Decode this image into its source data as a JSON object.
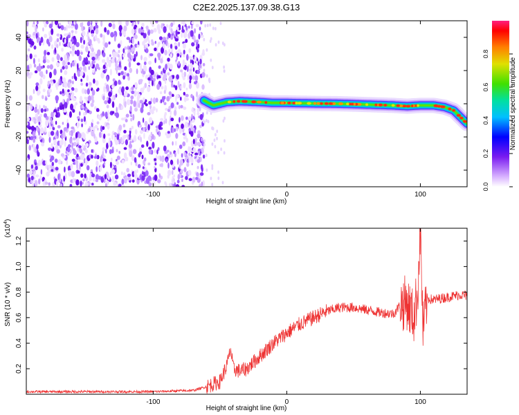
{
  "title": "C2E2.2025.137.09.38.G13",
  "chart_data": [
    {
      "type": "heatmap",
      "title": "C2E2.2025.137.09.38.G13",
      "xlabel": "Height of straight line (km)",
      "ylabel": "Frequency (Hz)",
      "xlim": [
        -195,
        135
      ],
      "ylim": [
        -50,
        50
      ],
      "xticks": [
        -100,
        0,
        100
      ],
      "yticks": [
        -40,
        -20,
        0,
        20,
        40
      ],
      "grid": false,
      "noise_region_x": [
        -195,
        -62
      ],
      "signal_trace": {
        "x": [
          -62,
          -55,
          -45,
          -35,
          -20,
          -10,
          0,
          20,
          40,
          60,
          80,
          90,
          100,
          110,
          118,
          125,
          130,
          135
        ],
        "y": [
          2,
          -1,
          1,
          1.5,
          1,
          0.5,
          0.5,
          0.2,
          0,
          -0.5,
          -1,
          -1.5,
          -1,
          -1,
          -2,
          -4,
          -8,
          -12
        ]
      },
      "colorbar": {
        "label": "Normalized spectral amplitude",
        "ticks": [
          "0.0",
          "0.2",
          "0.4",
          "0.6",
          "0.8"
        ],
        "range": [
          0,
          1
        ]
      }
    },
    {
      "type": "line",
      "xlabel": "Height of straight line (km)",
      "ylabel": "SNR (10 * v/v)",
      "y_multiplier": "(x10",
      "y_multiplier_exp": "4",
      "y_multiplier_close": ")",
      "xlim": [
        -195,
        135
      ],
      "ylim": [
        0,
        1.3
      ],
      "xticks": [
        -100,
        0,
        100
      ],
      "yticks": [
        "0.2",
        "0.4",
        "0.6",
        "0.8",
        "1.0",
        "1.2"
      ],
      "grid": false,
      "color": "#ee3333",
      "series": [
        {
          "x": [
            -195,
            -150,
            -100,
            -70,
            -60,
            -50,
            -45,
            -42,
            -40,
            -35,
            -30,
            -20,
            -10,
            0,
            10,
            20,
            30,
            40,
            50,
            60,
            70,
            80,
            85,
            90,
            95,
            98,
            100,
            102,
            105,
            110,
            120,
            130,
            135
          ],
          "y": [
            0.02,
            0.02,
            0.02,
            0.03,
            0.06,
            0.1,
            0.22,
            0.35,
            0.2,
            0.18,
            0.2,
            0.3,
            0.4,
            0.48,
            0.55,
            0.6,
            0.65,
            0.68,
            0.68,
            0.66,
            0.64,
            0.63,
            0.7,
            0.72,
            0.6,
            0.8,
            1.3,
            0.5,
            0.75,
            0.74,
            0.76,
            0.78,
            0.77
          ]
        }
      ]
    }
  ]
}
